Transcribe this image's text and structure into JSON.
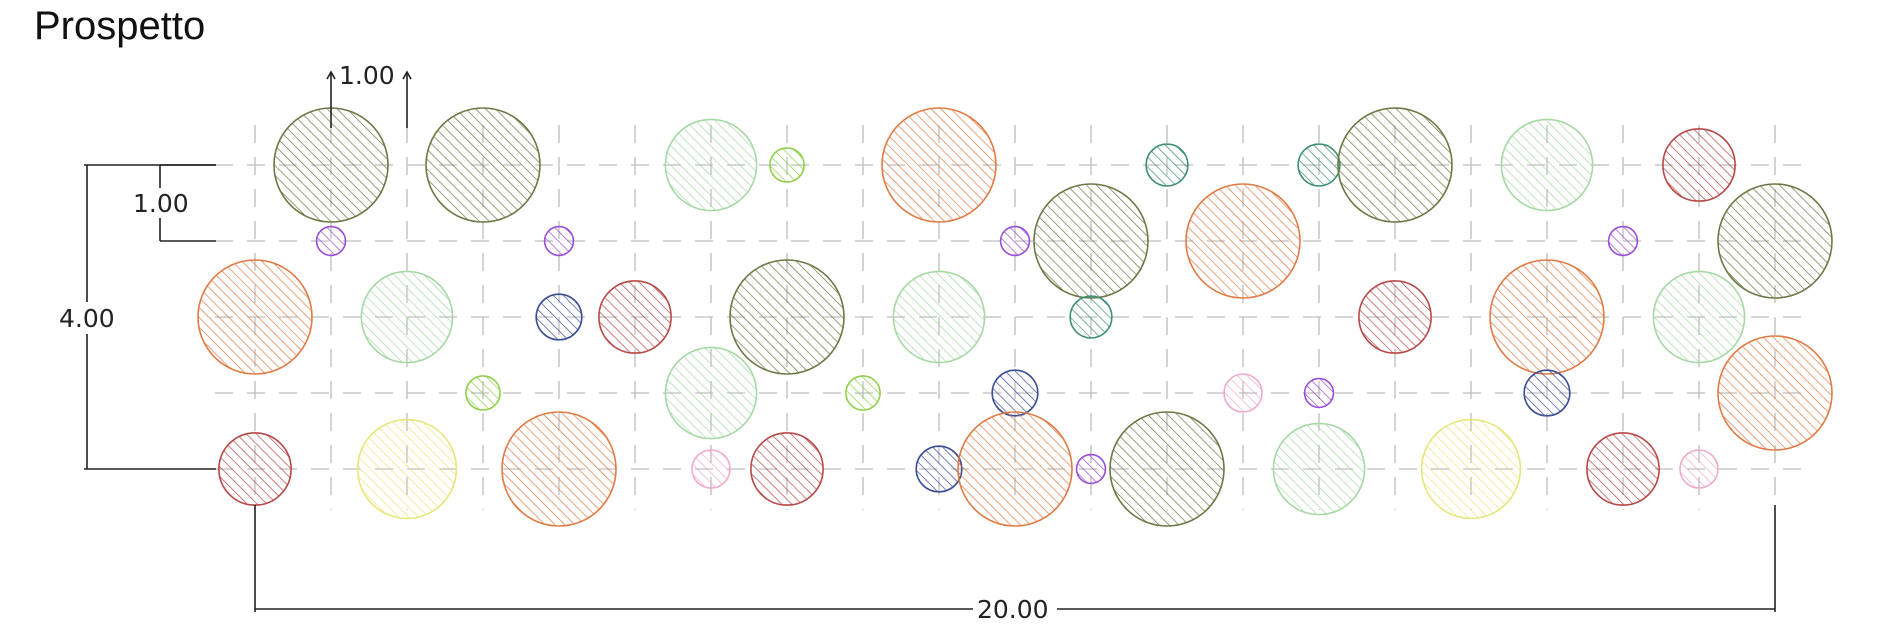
{
  "title": "Prospetto",
  "dimensions": {
    "top_spacing": "1.00",
    "left_spacing": "1.00",
    "height": "4.00",
    "width": "20.00"
  },
  "grid": {
    "columns": 21,
    "rows": 5,
    "spacing": 1.0
  },
  "colors": {
    "olive": "#6b7a45",
    "orange": "#e07b45",
    "lightgreen": "#a6d8a6",
    "red": "#b84848",
    "blue": "#3e4f96",
    "teal": "#3e8f78",
    "purple": "#9a4fd6",
    "lime": "#8fd04a",
    "pink": "#f0aacb",
    "yellow": "#e6e67a"
  },
  "circles": [
    {
      "x": 1,
      "y": 4,
      "d": 1.5,
      "color": "olive"
    },
    {
      "x": 3,
      "y": 4,
      "d": 1.5,
      "color": "olive"
    },
    {
      "x": 6,
      "y": 4,
      "d": 1.2,
      "color": "lightgreen"
    },
    {
      "x": 7,
      "y": 4,
      "d": 0.45,
      "color": "lime"
    },
    {
      "x": 9,
      "y": 4,
      "d": 1.5,
      "color": "orange"
    },
    {
      "x": 12,
      "y": 4,
      "d": 0.55,
      "color": "teal"
    },
    {
      "x": 14,
      "y": 4,
      "d": 0.55,
      "color": "teal"
    },
    {
      "x": 15,
      "y": 4,
      "d": 1.5,
      "color": "olive"
    },
    {
      "x": 17,
      "y": 4,
      "d": 1.2,
      "color": "lightgreen"
    },
    {
      "x": 19,
      "y": 4,
      "d": 0.95,
      "color": "red"
    },
    {
      "x": 1,
      "y": 3,
      "d": 0.38,
      "color": "purple"
    },
    {
      "x": 4,
      "y": 3,
      "d": 0.38,
      "color": "purple"
    },
    {
      "x": 10,
      "y": 3,
      "d": 0.38,
      "color": "purple"
    },
    {
      "x": 11,
      "y": 3,
      "d": 1.5,
      "color": "olive"
    },
    {
      "x": 13,
      "y": 3,
      "d": 1.5,
      "color": "orange"
    },
    {
      "x": 18,
      "y": 3,
      "d": 0.38,
      "color": "purple"
    },
    {
      "x": 20,
      "y": 3,
      "d": 1.5,
      "color": "olive"
    },
    {
      "x": 0,
      "y": 2,
      "d": 1.5,
      "color": "orange"
    },
    {
      "x": 2,
      "y": 2,
      "d": 1.2,
      "color": "lightgreen"
    },
    {
      "x": 4,
      "y": 2,
      "d": 0.6,
      "color": "blue"
    },
    {
      "x": 5,
      "y": 2,
      "d": 0.95,
      "color": "red"
    },
    {
      "x": 7,
      "y": 2,
      "d": 1.5,
      "color": "olive"
    },
    {
      "x": 9,
      "y": 2,
      "d": 1.2,
      "color": "lightgreen"
    },
    {
      "x": 11,
      "y": 2,
      "d": 0.55,
      "color": "teal"
    },
    {
      "x": 15,
      "y": 2,
      "d": 0.95,
      "color": "red"
    },
    {
      "x": 17,
      "y": 2,
      "d": 1.5,
      "color": "orange"
    },
    {
      "x": 19,
      "y": 2,
      "d": 1.2,
      "color": "lightgreen"
    },
    {
      "x": 3,
      "y": 1,
      "d": 0.45,
      "color": "lime"
    },
    {
      "x": 6,
      "y": 1,
      "d": 1.2,
      "color": "lightgreen"
    },
    {
      "x": 8,
      "y": 1,
      "d": 0.45,
      "color": "lime"
    },
    {
      "x": 10,
      "y": 1,
      "d": 0.6,
      "color": "blue"
    },
    {
      "x": 13,
      "y": 1,
      "d": 0.5,
      "color": "pink"
    },
    {
      "x": 14,
      "y": 1,
      "d": 0.38,
      "color": "purple"
    },
    {
      "x": 17,
      "y": 1,
      "d": 0.6,
      "color": "blue"
    },
    {
      "x": 20,
      "y": 1,
      "d": 1.5,
      "color": "orange"
    },
    {
      "x": 0,
      "y": 0,
      "d": 0.95,
      "color": "red"
    },
    {
      "x": 2,
      "y": 0,
      "d": 1.3,
      "color": "yellow"
    },
    {
      "x": 4,
      "y": 0,
      "d": 1.5,
      "color": "orange"
    },
    {
      "x": 6,
      "y": 0,
      "d": 0.5,
      "color": "pink"
    },
    {
      "x": 7,
      "y": 0,
      "d": 0.95,
      "color": "red"
    },
    {
      "x": 9,
      "y": 0,
      "d": 0.6,
      "color": "blue"
    },
    {
      "x": 10,
      "y": 0,
      "d": 1.5,
      "color": "orange"
    },
    {
      "x": 11,
      "y": 0,
      "d": 0.38,
      "color": "purple"
    },
    {
      "x": 12,
      "y": 0,
      "d": 1.5,
      "color": "olive"
    },
    {
      "x": 14,
      "y": 0,
      "d": 1.2,
      "color": "lightgreen"
    },
    {
      "x": 16,
      "y": 0,
      "d": 1.3,
      "color": "yellow"
    },
    {
      "x": 18,
      "y": 0,
      "d": 0.95,
      "color": "red"
    },
    {
      "x": 19,
      "y": 0,
      "d": 0.5,
      "color": "pink"
    }
  ]
}
